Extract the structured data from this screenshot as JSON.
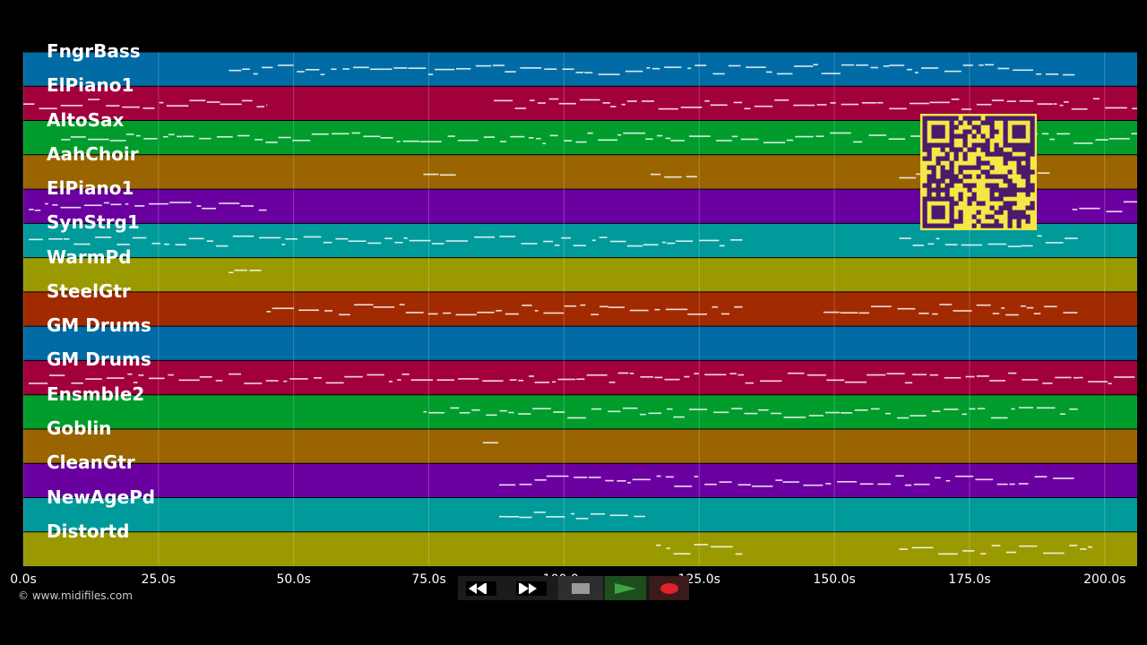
{
  "tracks": [
    {
      "name": "FngrBass",
      "color": "#006ba4"
    },
    {
      "name": "ElPiano1",
      "color": "#a2003c"
    },
    {
      "name": "AltoSax",
      "color": "#009c2c"
    },
    {
      "name": "AahChoir",
      "color": "#9a6500"
    },
    {
      "name": "ElPiano1",
      "color": "#6b00a0"
    },
    {
      "name": "SynStrg1",
      "color": "#009a9a"
    },
    {
      "name": "WarmPd",
      "color": "#9a9a00"
    },
    {
      "name": "SteelGtr",
      "color": "#a22a00"
    },
    {
      "name": "GM Drums",
      "color": "#006ba4"
    },
    {
      "name": "GM Drums",
      "color": "#a2003c"
    },
    {
      "name": "Ensmble2",
      "color": "#009c2c"
    },
    {
      "name": "Goblin",
      "color": "#9a6500"
    },
    {
      "name": "CleanGtr",
      "color": "#6b00a0"
    },
    {
      "name": "NewAgePd",
      "color": "#009a9a"
    },
    {
      "name": "Distortd",
      "color": "#9a9a00"
    }
  ],
  "timeline": {
    "range_seconds": [
      0,
      206
    ],
    "ticks": [
      {
        "t": 0,
        "label": "0.0s"
      },
      {
        "t": 25,
        "label": "25.0s"
      },
      {
        "t": 50,
        "label": "50.0s"
      },
      {
        "t": 75,
        "label": "75.0s"
      },
      {
        "t": 100,
        "label": "100.0s"
      },
      {
        "t": 125,
        "label": "125.0s"
      },
      {
        "t": 150,
        "label": "150.0s"
      },
      {
        "t": 175,
        "label": "175.0s"
      },
      {
        "t": 200,
        "label": "200.0s"
      }
    ]
  },
  "copyright": "© www.midifiles.com",
  "transport": {
    "rewind_icon": "rewind-icon",
    "fast_forward_icon": "fast-forward-icon",
    "stop_icon": "stop-icon",
    "play_icon": "play-icon",
    "record_icon": "record-icon",
    "colors": {
      "play": "#3fa63f",
      "record": "#e0202a",
      "stop": "#9a9a9a"
    }
  },
  "qr_code": {
    "icon": "qr-code-icon",
    "color": "#f6e646"
  }
}
